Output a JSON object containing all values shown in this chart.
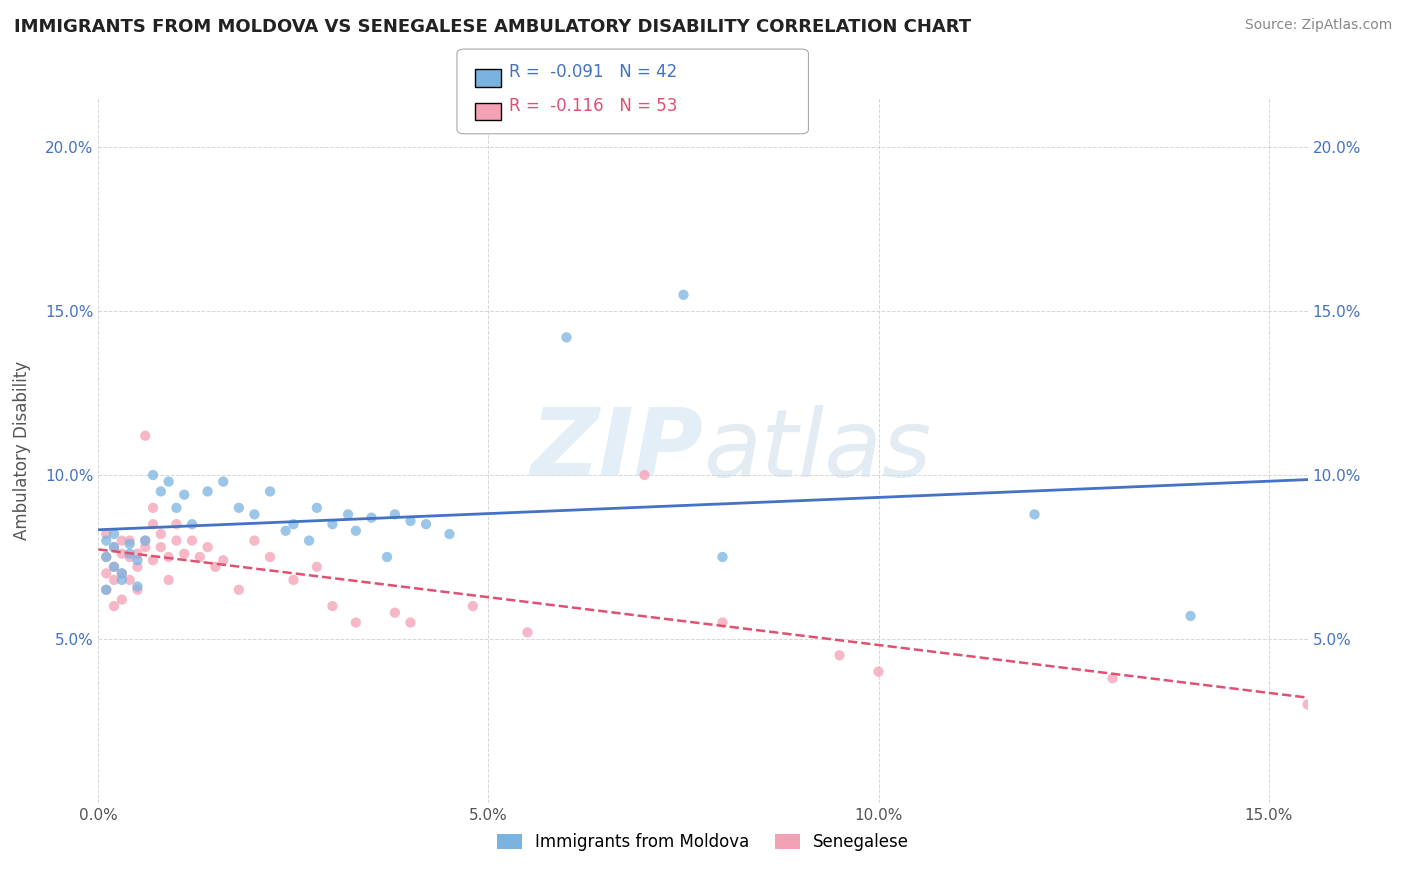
{
  "title": "IMMIGRANTS FROM MOLDOVA VS SENEGALESE AMBULATORY DISABILITY CORRELATION CHART",
  "source": "Source: ZipAtlas.com",
  "ylabel": "Ambulatory Disability",
  "x_min": 0.0,
  "x_max": 0.155,
  "y_min": 0.0,
  "y_max": 0.215,
  "x_ticks": [
    0.0,
    0.05,
    0.1,
    0.15
  ],
  "x_tick_labels": [
    "0.0%",
    "5.0%",
    "10.0%",
    "15.0%"
  ],
  "y_ticks": [
    0.05,
    0.1,
    0.15,
    0.2
  ],
  "y_tick_labels": [
    "5.0%",
    "10.0%",
    "15.0%",
    "20.0%"
  ],
  "legend_label1": "Immigrants from Moldova",
  "legend_label2": "Senegalese",
  "r1": -0.091,
  "n1": 42,
  "r2": -0.116,
  "n2": 53,
  "color1": "#7ab3e0",
  "color2": "#f4a0b5",
  "trendline1_color": "#4472c4",
  "trendline2_color": "#e05070",
  "watermark_zip": "ZIP",
  "watermark_atlas": "atlas",
  "moldova_x": [
    0.001,
    0.001,
    0.001,
    0.002,
    0.002,
    0.002,
    0.003,
    0.003,
    0.004,
    0.004,
    0.005,
    0.005,
    0.006,
    0.007,
    0.008,
    0.009,
    0.01,
    0.011,
    0.012,
    0.014,
    0.016,
    0.018,
    0.02,
    0.022,
    0.024,
    0.025,
    0.027,
    0.028,
    0.03,
    0.032,
    0.033,
    0.035,
    0.037,
    0.038,
    0.04,
    0.042,
    0.045,
    0.06,
    0.075,
    0.08,
    0.12,
    0.14
  ],
  "moldova_y": [
    0.075,
    0.08,
    0.065,
    0.078,
    0.072,
    0.082,
    0.07,
    0.068,
    0.076,
    0.079,
    0.074,
    0.066,
    0.08,
    0.1,
    0.095,
    0.098,
    0.09,
    0.094,
    0.085,
    0.095,
    0.098,
    0.09,
    0.088,
    0.095,
    0.083,
    0.085,
    0.08,
    0.09,
    0.085,
    0.088,
    0.083,
    0.087,
    0.075,
    0.088,
    0.086,
    0.085,
    0.082,
    0.142,
    0.155,
    0.075,
    0.088,
    0.057
  ],
  "senegal_x": [
    0.001,
    0.001,
    0.001,
    0.001,
    0.002,
    0.002,
    0.002,
    0.002,
    0.003,
    0.003,
    0.003,
    0.003,
    0.004,
    0.004,
    0.004,
    0.005,
    0.005,
    0.005,
    0.006,
    0.006,
    0.006,
    0.007,
    0.007,
    0.007,
    0.008,
    0.008,
    0.009,
    0.009,
    0.01,
    0.01,
    0.011,
    0.012,
    0.013,
    0.014,
    0.015,
    0.016,
    0.018,
    0.02,
    0.022,
    0.025,
    0.028,
    0.03,
    0.033,
    0.038,
    0.04,
    0.048,
    0.055,
    0.07,
    0.08,
    0.095,
    0.1,
    0.13,
    0.155
  ],
  "senegal_y": [
    0.075,
    0.07,
    0.082,
    0.065,
    0.078,
    0.072,
    0.06,
    0.068,
    0.08,
    0.076,
    0.062,
    0.07,
    0.075,
    0.08,
    0.068,
    0.072,
    0.076,
    0.065,
    0.078,
    0.08,
    0.112,
    0.085,
    0.09,
    0.074,
    0.078,
    0.082,
    0.068,
    0.075,
    0.08,
    0.085,
    0.076,
    0.08,
    0.075,
    0.078,
    0.072,
    0.074,
    0.065,
    0.08,
    0.075,
    0.068,
    0.072,
    0.06,
    0.055,
    0.058,
    0.055,
    0.06,
    0.052,
    0.1,
    0.055,
    0.045,
    0.04,
    0.038,
    0.03
  ]
}
